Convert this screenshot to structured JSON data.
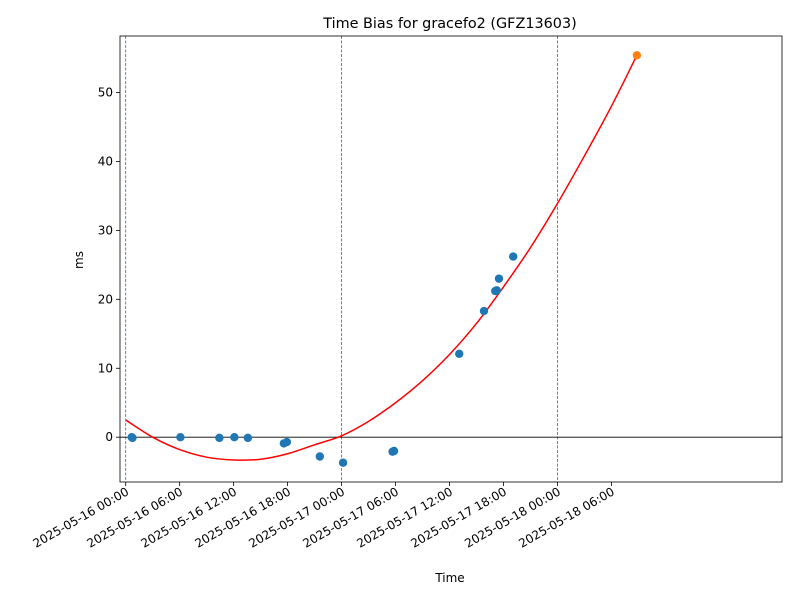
{
  "chart_data": {
    "type": "scatter",
    "title": "Time Bias for gracefo2 (GFZ13603)",
    "xlabel": "Time",
    "ylabel": "ms",
    "x_unit": "datetime",
    "xlim": [
      "2025-05-15T23:22:00",
      "2025-05-19T00:58:00"
    ],
    "ylim": [
      -6.5,
      58.2
    ],
    "x_ticks": [
      {
        "value": "2025-05-16T00:00:00",
        "label": "2025-05-16 00:00"
      },
      {
        "value": "2025-05-16T06:00:00",
        "label": "2025-05-16 06:00"
      },
      {
        "value": "2025-05-16T12:00:00",
        "label": "2025-05-16 12:00"
      },
      {
        "value": "2025-05-16T18:00:00",
        "label": "2025-05-16 18:00"
      },
      {
        "value": "2025-05-17T00:00:00",
        "label": "2025-05-17 00:00"
      },
      {
        "value": "2025-05-17T06:00:00",
        "label": "2025-05-17 06:00"
      },
      {
        "value": "2025-05-17T12:00:00",
        "label": "2025-05-17 12:00"
      },
      {
        "value": "2025-05-17T18:00:00",
        "label": "2025-05-17 18:00"
      },
      {
        "value": "2025-05-18T00:00:00",
        "label": "2025-05-18 00:00"
      },
      {
        "value": "2025-05-18T06:00:00",
        "label": "2025-05-18 06:00"
      }
    ],
    "y_ticks": [
      0,
      10,
      20,
      30,
      40,
      50
    ],
    "vertical_lines": [
      "2025-05-16T00:00:00",
      "2025-05-17T00:00:00",
      "2025-05-18T00:00:00"
    ],
    "zero_line": true,
    "grid": false,
    "colors": {
      "observed": "#1f77b4",
      "prediction": "#ff7f0e",
      "fit": "#ff0000",
      "day_line": "#1f77b4",
      "zero_line": "#000000"
    },
    "series": [
      {
        "type": "scatter",
        "color": "#1f77b4",
        "points": [
          {
            "x": "2025-05-16T00:40:00",
            "y": 0.0
          },
          {
            "x": "2025-05-16T00:45:00",
            "y": -0.1
          },
          {
            "x": "2025-05-16T06:05:00",
            "y": 0.0
          },
          {
            "x": "2025-05-16T10:25:00",
            "y": -0.1
          },
          {
            "x": "2025-05-16T12:05:00",
            "y": 0.0
          },
          {
            "x": "2025-05-16T13:35:00",
            "y": -0.1
          },
          {
            "x": "2025-05-16T17:35:00",
            "y": -0.9
          },
          {
            "x": "2025-05-16T17:55:00",
            "y": -0.7
          },
          {
            "x": "2025-05-16T21:35:00",
            "y": -2.8
          },
          {
            "x": "2025-05-17T00:10:00",
            "y": -3.7
          },
          {
            "x": "2025-05-17T05:40:00",
            "y": -2.1
          },
          {
            "x": "2025-05-17T05:50:00",
            "y": -2.0
          },
          {
            "x": "2025-05-17T13:05:00",
            "y": 12.1
          },
          {
            "x": "2025-05-17T15:50:00",
            "y": 18.3
          },
          {
            "x": "2025-05-17T17:05:00",
            "y": 21.2
          },
          {
            "x": "2025-05-17T17:15:00",
            "y": 21.3
          },
          {
            "x": "2025-05-17T17:30:00",
            "y": 23.0
          },
          {
            "x": "2025-05-17T19:05:00",
            "y": 26.2
          }
        ]
      },
      {
        "type": "scatter",
        "color": "#ff7f0e",
        "points": [
          {
            "x": "2025-05-18T08:50:00",
            "y": 55.4
          }
        ]
      },
      {
        "type": "line",
        "color": "#ff0000",
        "points": [
          {
            "x": "2025-05-16T00:00:00",
            "y": 2.5
          },
          {
            "x": "2025-05-16T03:00:00",
            "y": 0.0
          },
          {
            "x": "2025-05-16T06:00:00",
            "y": -1.8
          },
          {
            "x": "2025-05-16T09:00:00",
            "y": -2.9
          },
          {
            "x": "2025-05-16T12:00:00",
            "y": -3.3
          },
          {
            "x": "2025-05-16T15:00:00",
            "y": -3.2
          },
          {
            "x": "2025-05-16T18:00:00",
            "y": -2.4
          },
          {
            "x": "2025-05-16T21:00:00",
            "y": -1.1
          },
          {
            "x": "2025-05-17T00:00:00",
            "y": 0.2
          },
          {
            "x": "2025-05-17T03:00:00",
            "y": 2.3
          },
          {
            "x": "2025-05-17T06:00:00",
            "y": 5.0
          },
          {
            "x": "2025-05-17T09:00:00",
            "y": 8.2
          },
          {
            "x": "2025-05-17T12:00:00",
            "y": 12.0
          },
          {
            "x": "2025-05-17T15:00:00",
            "y": 16.5
          },
          {
            "x": "2025-05-17T18:00:00",
            "y": 21.8
          },
          {
            "x": "2025-05-17T21:00:00",
            "y": 27.5
          },
          {
            "x": "2025-05-18T00:00:00",
            "y": 33.9
          },
          {
            "x": "2025-05-18T03:00:00",
            "y": 40.8
          },
          {
            "x": "2025-05-18T06:00:00",
            "y": 48.0
          },
          {
            "x": "2025-05-18T08:50:00",
            "y": 55.4
          }
        ]
      }
    ]
  }
}
